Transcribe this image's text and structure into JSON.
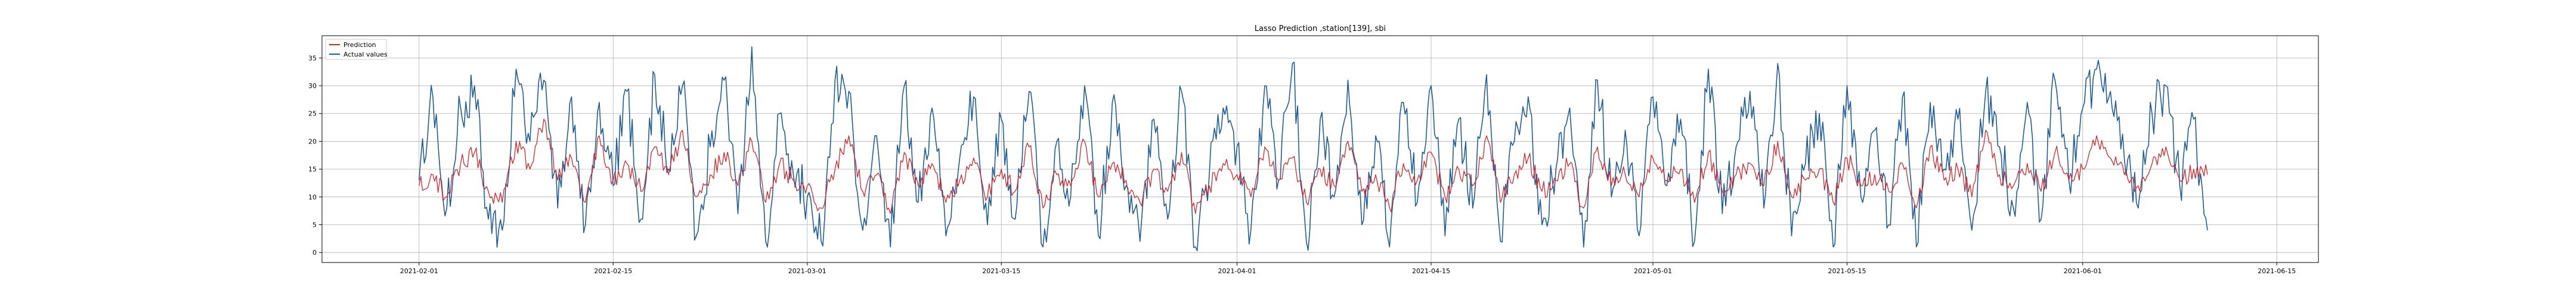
{
  "chart_data": {
    "type": "line",
    "title": "Lasso Prediction ,station[139], sbi",
    "xlabel": "",
    "ylabel": "",
    "x_range": [
      "2021-01-25",
      "2021-06-18"
    ],
    "data_range": [
      "2021-02-01",
      "2021-06-10"
    ],
    "ylim": [
      -1.8,
      39
    ],
    "x_ticks": [
      "2021-02-01",
      "2021-02-15",
      "2021-03-01",
      "2021-03-15",
      "2021-04-01",
      "2021-04-15",
      "2021-05-01",
      "2021-05-15",
      "2021-06-01",
      "2021-06-15"
    ],
    "y_ticks": [
      0,
      5,
      10,
      15,
      20,
      25,
      30,
      35
    ],
    "grid": true,
    "legend_position": "top-left",
    "x": [
      "2021-02-01",
      "2021-02-02",
      "2021-02-03",
      "2021-02-04",
      "2021-02-05",
      "2021-02-06",
      "2021-02-07",
      "2021-02-08",
      "2021-02-09",
      "2021-02-10",
      "2021-02-11",
      "2021-02-12",
      "2021-02-13",
      "2021-02-14",
      "2021-02-15",
      "2021-02-16",
      "2021-02-17",
      "2021-02-18",
      "2021-02-19",
      "2021-02-20",
      "2021-02-21",
      "2021-02-22",
      "2021-02-23",
      "2021-02-24",
      "2021-02-25",
      "2021-02-26",
      "2021-02-27",
      "2021-02-28",
      "2021-03-01",
      "2021-03-02",
      "2021-03-03",
      "2021-03-04",
      "2021-03-05",
      "2021-03-06",
      "2021-03-07",
      "2021-03-08",
      "2021-03-09",
      "2021-03-10",
      "2021-03-11",
      "2021-03-12",
      "2021-03-13",
      "2021-03-14",
      "2021-03-15",
      "2021-03-16",
      "2021-03-17",
      "2021-03-18",
      "2021-03-19",
      "2021-03-20",
      "2021-03-21",
      "2021-03-22",
      "2021-03-23",
      "2021-03-24",
      "2021-03-25",
      "2021-03-26",
      "2021-03-27",
      "2021-03-28",
      "2021-03-29",
      "2021-03-30",
      "2021-03-31",
      "2021-04-01",
      "2021-04-02",
      "2021-04-03",
      "2021-04-04",
      "2021-04-05",
      "2021-04-06",
      "2021-04-07",
      "2021-04-08",
      "2021-04-09",
      "2021-04-10",
      "2021-04-11",
      "2021-04-12",
      "2021-04-13",
      "2021-04-14",
      "2021-04-15",
      "2021-04-16",
      "2021-04-17",
      "2021-04-18",
      "2021-04-19",
      "2021-04-20",
      "2021-04-21",
      "2021-04-22",
      "2021-04-23",
      "2021-04-24",
      "2021-04-25",
      "2021-04-26",
      "2021-04-27",
      "2021-04-28",
      "2021-04-29",
      "2021-04-30",
      "2021-05-01",
      "2021-05-02",
      "2021-05-03",
      "2021-05-04",
      "2021-05-05",
      "2021-05-06",
      "2021-05-07",
      "2021-05-08",
      "2021-05-09",
      "2021-05-10",
      "2021-05-11",
      "2021-05-12",
      "2021-05-13",
      "2021-05-14",
      "2021-05-15",
      "2021-05-16",
      "2021-05-17",
      "2021-05-18",
      "2021-05-19",
      "2021-05-20",
      "2021-05-21",
      "2021-05-22",
      "2021-05-23",
      "2021-05-24",
      "2021-05-25",
      "2021-05-26",
      "2021-05-27",
      "2021-05-28",
      "2021-05-29",
      "2021-05-30",
      "2021-05-31",
      "2021-06-01",
      "2021-06-02",
      "2021-06-03",
      "2021-06-04",
      "2021-06-05",
      "2021-06-06",
      "2021-06-07",
      "2021-06-08",
      "2021-06-09",
      "2021-06-10"
    ],
    "series": [
      {
        "name": "Prediction",
        "color": "#d62728",
        "values": [
          12,
          14,
          10,
          16,
          18,
          11,
          9,
          20,
          15,
          24,
          13,
          17,
          9,
          21,
          13,
          16,
          11,
          19,
          14,
          22,
          10,
          14,
          18,
          12,
          20,
          9,
          16,
          13,
          12,
          8,
          15,
          21,
          11,
          14,
          7,
          18,
          12,
          16,
          9,
          13,
          17,
          10,
          15,
          11,
          19,
          8,
          14,
          12,
          20,
          10,
          16,
          13,
          9,
          15,
          11,
          18,
          7,
          12,
          16,
          14,
          10,
          19,
          13,
          17,
          9,
          15,
          12,
          20,
          11,
          14,
          8,
          16,
          13,
          18,
          10,
          15,
          12,
          21,
          9,
          14,
          17,
          11,
          13,
          16,
          8,
          19,
          12,
          14,
          10,
          17,
          13,
          15,
          9,
          18,
          11,
          14,
          16,
          12,
          20,
          10,
          13,
          15,
          9,
          17,
          12,
          14,
          11,
          16,
          8,
          19,
          13,
          15,
          10,
          22,
          14,
          12,
          16,
          11,
          18,
          13,
          15,
          21,
          17,
          14,
          12,
          16,
          19,
          13,
          15,
          14
        ]
      },
      {
        "name": "Actual values",
        "color": "#1f5d99",
        "values": [
          13,
          28,
          8,
          26,
          30,
          6,
          4,
          33,
          20,
          31,
          8,
          28,
          5,
          27,
          12,
          29,
          6,
          32,
          15,
          30,
          3,
          19,
          31,
          7,
          37,
          2,
          25,
          14,
          10,
          2,
          31,
          29,
          4,
          21,
          1,
          30,
          9,
          26,
          3,
          17,
          28,
          5,
          24,
          6,
          29,
          1,
          20,
          10,
          30,
          3,
          27,
          12,
          2,
          24,
          6,
          29,
          1,
          14,
          26,
          19,
          4,
          30,
          13,
          34,
          2,
          24,
          10,
          31,
          5,
          21,
          1,
          27,
          9,
          30,
          3,
          24,
          8,
          32,
          2,
          20,
          28,
          5,
          15,
          26,
          1,
          31,
          10,
          22,
          3,
          28,
          12,
          24,
          2,
          33,
          7,
          19,
          29,
          8,
          34,
          3,
          16,
          25,
          1,
          30,
          10,
          22,
          5,
          28,
          1,
          27,
          15,
          24,
          4,
          29,
          19,
          8,
          27,
          6,
          31,
          13,
          26,
          33,
          29,
          17,
          8,
          25,
          30,
          12,
          24,
          4
        ]
      }
    ]
  }
}
